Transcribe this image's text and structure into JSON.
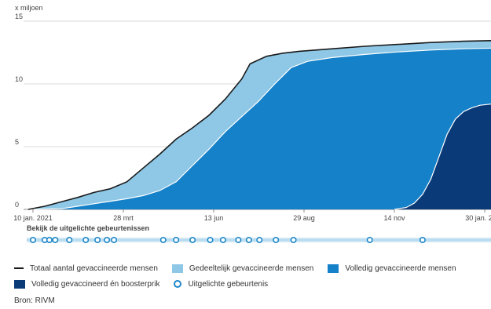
{
  "chart_data": {
    "type": "area",
    "unit_label": "x miljoen",
    "title": "",
    "xlabel": "",
    "ylabel": "x miljoen",
    "ylim": [
      0,
      15
    ],
    "yticks": [
      0,
      5,
      10,
      15
    ],
    "xlim": [
      "2021-01-06",
      "2022-02-05"
    ],
    "xticks": [
      {
        "date": "2021-01-10",
        "label": "10 jan. 2021"
      },
      {
        "date": "2021-03-28",
        "label": "28 mrt"
      },
      {
        "date": "2021-06-13",
        "label": "13 jun"
      },
      {
        "date": "2021-08-29",
        "label": "29 aug"
      },
      {
        "date": "2021-11-14",
        "label": "14 nov"
      },
      {
        "date": "2022-01-30",
        "label": "30 jan. 2022"
      }
    ],
    "grid": true,
    "series": [
      {
        "name": "Totaal aantal gevaccineerde mensen",
        "style": "line",
        "color": "#1a1a1a",
        "points": [
          [
            "2021-01-06",
            0.0
          ],
          [
            "2021-01-20",
            0.25
          ],
          [
            "2021-02-03",
            0.6
          ],
          [
            "2021-02-17",
            0.95
          ],
          [
            "2021-03-03",
            1.35
          ],
          [
            "2021-03-17",
            1.65
          ],
          [
            "2021-03-31",
            2.2
          ],
          [
            "2021-04-14",
            3.3
          ],
          [
            "2021-04-28",
            4.4
          ],
          [
            "2021-05-12",
            5.6
          ],
          [
            "2021-05-26",
            6.5
          ],
          [
            "2021-06-09",
            7.5
          ],
          [
            "2021-06-23",
            8.8
          ],
          [
            "2021-07-07",
            10.4
          ],
          [
            "2021-07-14",
            11.6
          ],
          [
            "2021-07-28",
            12.2
          ],
          [
            "2021-08-11",
            12.45
          ],
          [
            "2021-08-25",
            12.6
          ],
          [
            "2021-09-22",
            12.8
          ],
          [
            "2021-10-20",
            13.0
          ],
          [
            "2021-11-17",
            13.15
          ],
          [
            "2021-12-15",
            13.3
          ],
          [
            "2022-01-12",
            13.4
          ],
          [
            "2022-02-05",
            13.45
          ]
        ]
      },
      {
        "name": "Gedeeltelijk gevaccineerde mensen",
        "style": "area",
        "color": "#8ec8e6",
        "note": "area between total and volledig"
      },
      {
        "name": "Volledig gevaccineerde mensen",
        "style": "area",
        "color": "#1581c9",
        "points": [
          [
            "2021-01-06",
            0.0
          ],
          [
            "2021-02-03",
            0.05
          ],
          [
            "2021-02-17",
            0.25
          ],
          [
            "2021-03-03",
            0.45
          ],
          [
            "2021-03-17",
            0.65
          ],
          [
            "2021-03-31",
            0.85
          ],
          [
            "2021-04-14",
            1.1
          ],
          [
            "2021-04-28",
            1.5
          ],
          [
            "2021-05-12",
            2.2
          ],
          [
            "2021-05-26",
            3.5
          ],
          [
            "2021-06-09",
            4.8
          ],
          [
            "2021-06-23",
            6.2
          ],
          [
            "2021-07-07",
            7.4
          ],
          [
            "2021-07-21",
            8.6
          ],
          [
            "2021-08-04",
            10.0
          ],
          [
            "2021-08-18",
            11.3
          ],
          [
            "2021-09-01",
            11.8
          ],
          [
            "2021-09-22",
            12.1
          ],
          [
            "2021-10-20",
            12.35
          ],
          [
            "2021-11-17",
            12.55
          ],
          [
            "2021-12-15",
            12.7
          ],
          [
            "2022-01-12",
            12.8
          ],
          [
            "2022-02-05",
            12.85
          ]
        ]
      },
      {
        "name": "Volledig gevaccineerd én boosterprik",
        "style": "area",
        "color": "#0b3a78",
        "points": [
          [
            "2021-11-14",
            0.0
          ],
          [
            "2021-11-24",
            0.15
          ],
          [
            "2021-12-01",
            0.5
          ],
          [
            "2021-12-08",
            1.2
          ],
          [
            "2021-12-15",
            2.4
          ],
          [
            "2021-12-22",
            4.2
          ],
          [
            "2021-12-29",
            6.0
          ],
          [
            "2022-01-05",
            7.2
          ],
          [
            "2022-01-12",
            7.8
          ],
          [
            "2022-01-19",
            8.1
          ],
          [
            "2022-01-26",
            8.3
          ],
          [
            "2022-02-05",
            8.4
          ]
        ]
      }
    ],
    "events": {
      "label": "Bekijk de uitgelichte gebeurtenissen",
      "legend_name": "Uitgelichte gebeurtenis",
      "dates": [
        "2021-01-10",
        "2021-01-20",
        "2021-01-24",
        "2021-01-29",
        "2021-02-10",
        "2021-02-24",
        "2021-03-06",
        "2021-03-14",
        "2021-03-20",
        "2021-05-01",
        "2021-05-12",
        "2021-05-26",
        "2021-06-10",
        "2021-06-21",
        "2021-07-04",
        "2021-07-13",
        "2021-07-22",
        "2021-08-05",
        "2021-08-20",
        "2021-10-24",
        "2021-12-08"
      ]
    }
  },
  "legend": {
    "items": [
      {
        "label": "Totaal aantal gevaccineerde mensen",
        "kind": "line",
        "color": "#1a1a1a"
      },
      {
        "label": "Gedeeltelijk gevaccineerde mensen",
        "kind": "swatch",
        "color": "#8ec8e6"
      },
      {
        "label": "Volledig gevaccineerde mensen",
        "kind": "swatch",
        "color": "#1581c9"
      },
      {
        "label": "Volledig gevaccineerd én boosterprik",
        "kind": "swatch",
        "color": "#0b3a78"
      },
      {
        "label": "Uitgelichte gebeurtenis",
        "kind": "ring",
        "color": "#1d87c9"
      }
    ]
  },
  "source": "Bron: RIVM"
}
